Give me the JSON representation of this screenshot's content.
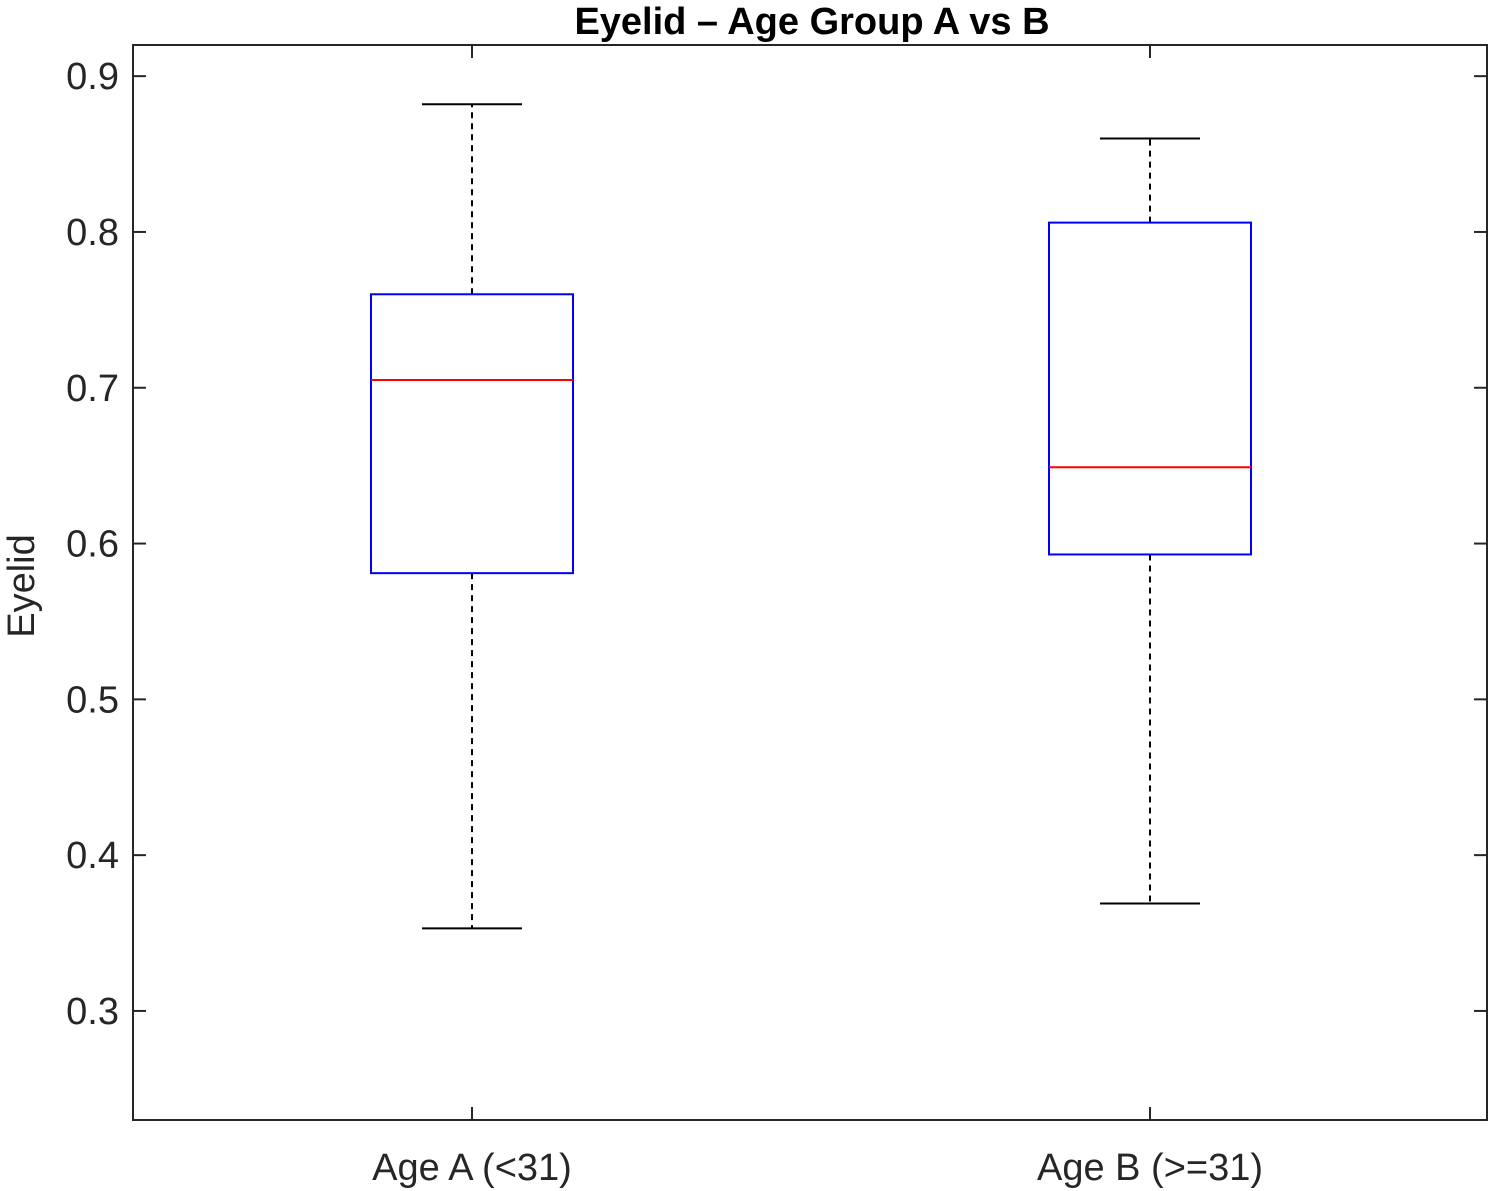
{
  "chart_data": {
    "type": "box",
    "title": "Eyelid  – Age Group A vs B",
    "xlabel": "",
    "ylabel": "Eyelid",
    "ylim": [
      0.23,
      0.92
    ],
    "yticks": [
      0.3,
      0.4,
      0.5,
      0.6,
      0.7,
      0.8,
      0.9
    ],
    "ytick_labels": [
      "0.3",
      "0.4",
      "0.5",
      "0.6",
      "0.7",
      "0.8",
      "0.9"
    ],
    "categories": [
      "Age A (<31)",
      "Age B (>=31)"
    ],
    "boxes": [
      {
        "category": "Age A (<31)",
        "whisker_low": 0.353,
        "q1": 0.581,
        "median": 0.705,
        "q3": 0.76,
        "whisker_high": 0.882
      },
      {
        "category": "Age B (>=31)",
        "whisker_low": 0.369,
        "q1": 0.593,
        "median": 0.649,
        "q3": 0.806,
        "whisker_high": 0.86
      }
    ],
    "grid": false,
    "colors": {
      "box": "#0000ff",
      "median": "#ff0000",
      "whisker": "#000000",
      "axis": "#262626"
    }
  }
}
